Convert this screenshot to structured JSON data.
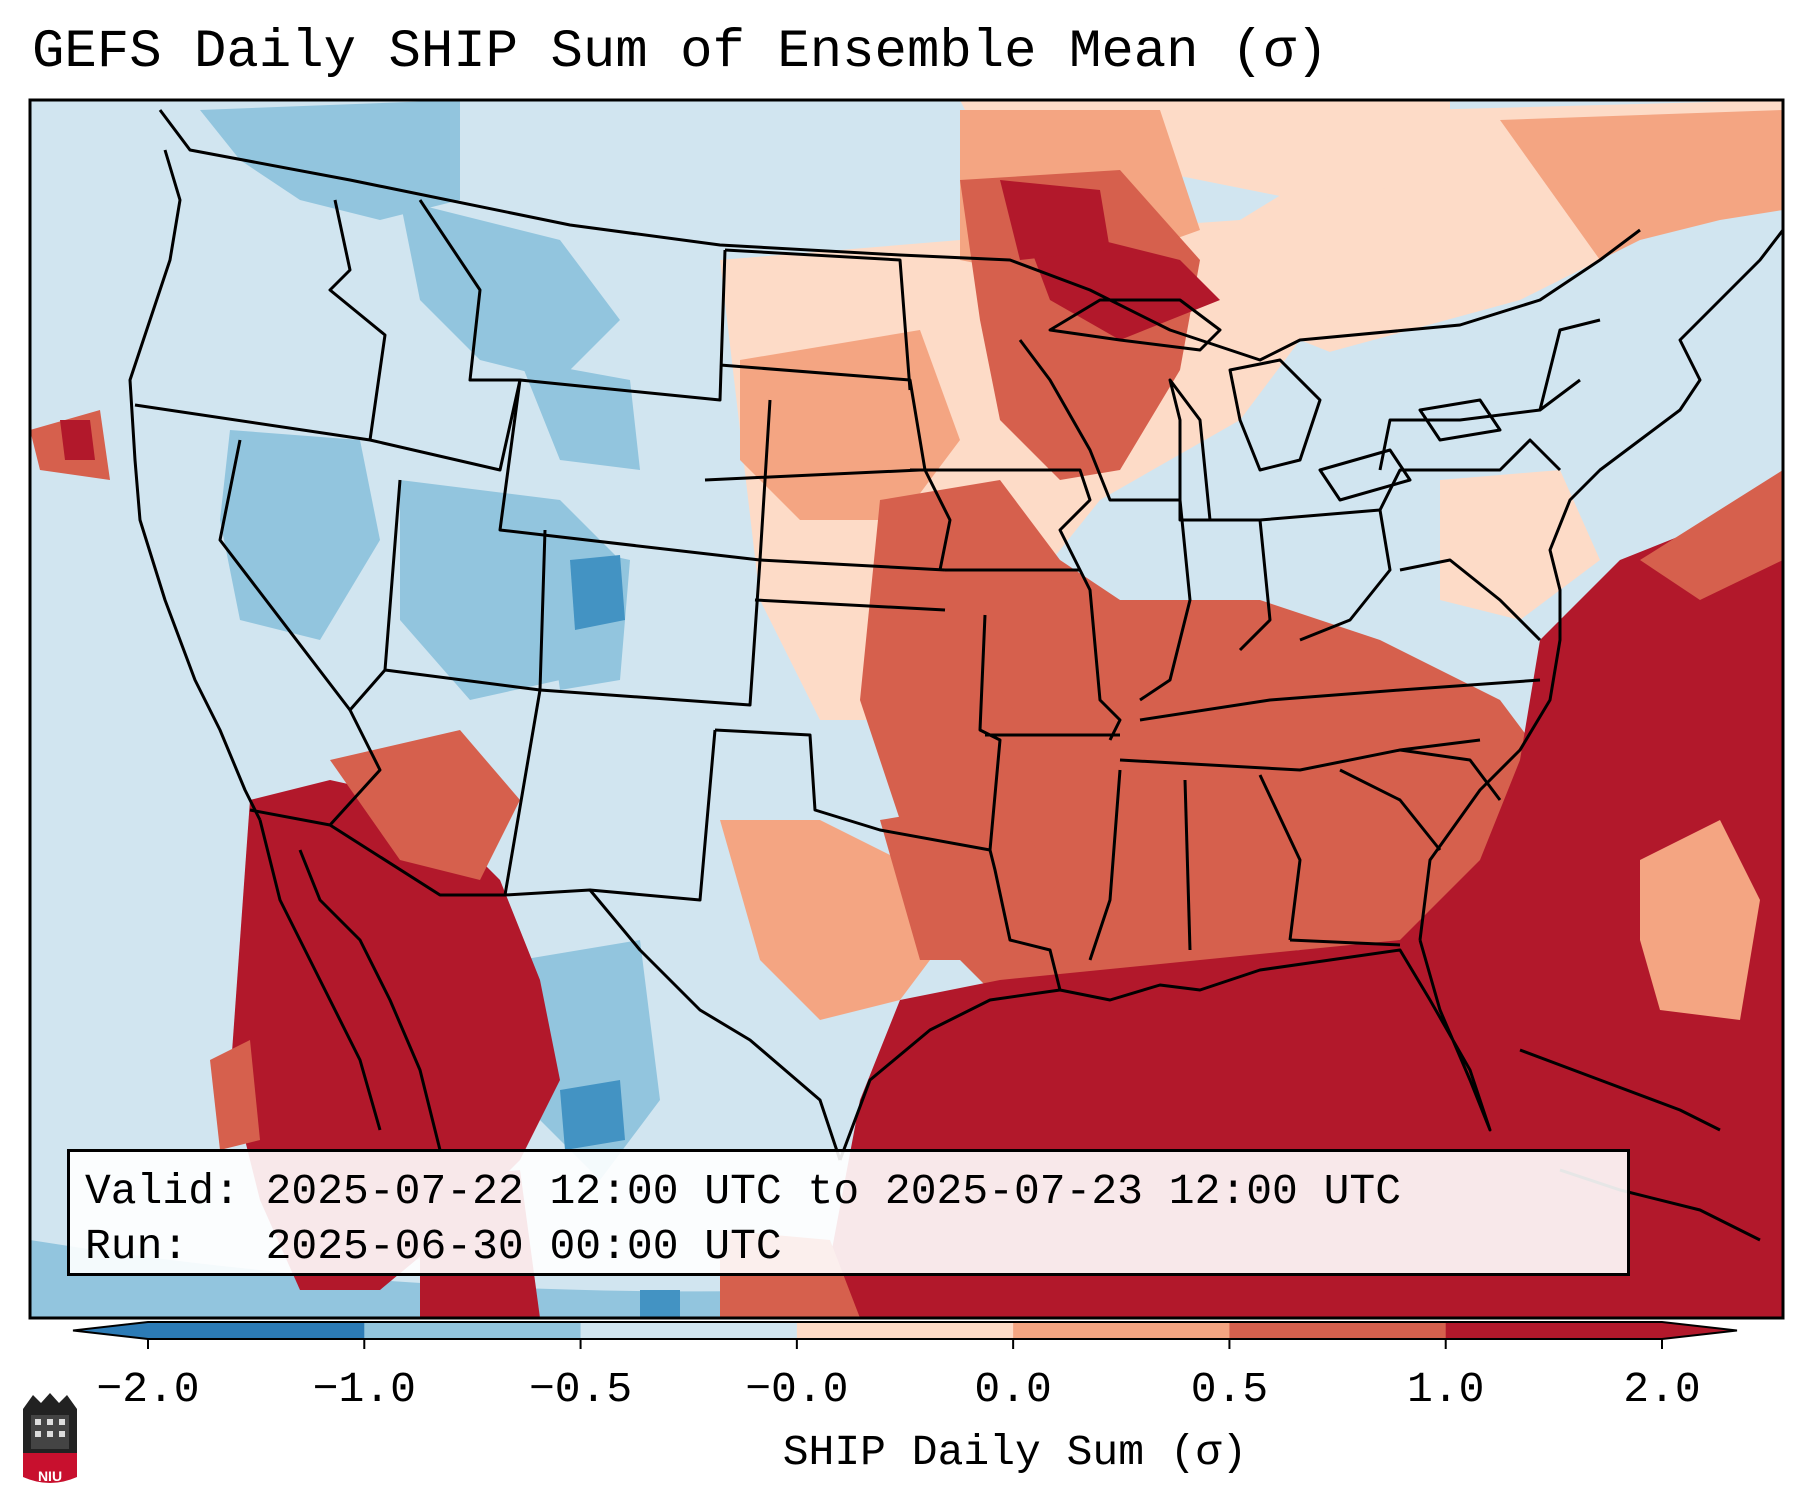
{
  "title": "GEFS Daily SHIP Sum of Ensemble Mean (σ)",
  "info": {
    "valid": "Valid: 2025-07-22 12:00 UTC to 2025-07-23 12:00 UTC",
    "run": "Run:   2025-06-30 00:00 UTC"
  },
  "colorbar": {
    "label": "SHIP Daily Sum (σ)",
    "ticks": [
      "−2.0",
      "−1.0",
      "−0.5",
      "−0.0",
      "0.0",
      "0.5",
      "1.0",
      "2.0"
    ],
    "colors": [
      "#2c7bb6",
      "#92c5de",
      "#d1e5f0",
      "#f7f7f7",
      "#fddbc7",
      "#f4a582",
      "#d6604d",
      "#b2182b"
    ],
    "extend": "both"
  },
  "logo": {
    "text": "NIU"
  }
}
